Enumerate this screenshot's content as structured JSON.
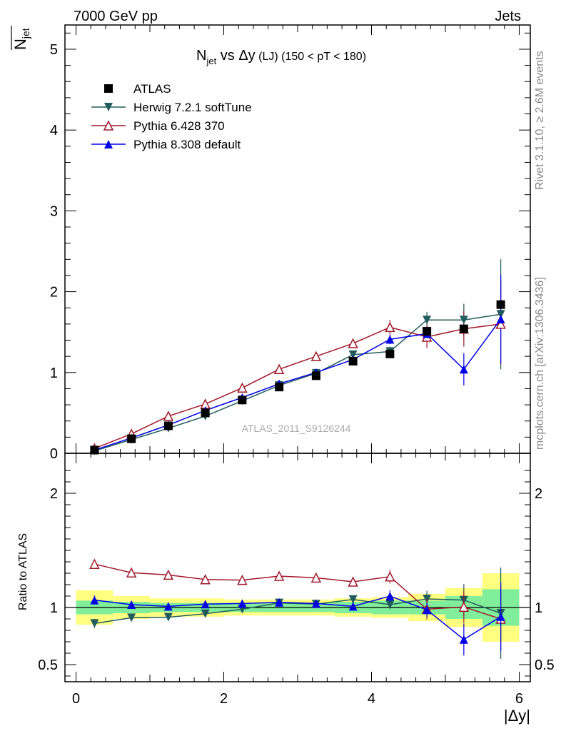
{
  "header": {
    "left": "7000 GeV pp",
    "right": "Jets"
  },
  "side_text": {
    "rivet": "Rivet 3.1.10, ≥ 2.6M events",
    "mcplots": "mcplots.cern.ch [arXiv:1306.3436]"
  },
  "main_title": {
    "n": "N",
    "jet_sub": "jet",
    "vs": " vs ",
    "dy": "Δy",
    "lj": " (LJ)",
    "range": " (150 < pT < 180)"
  },
  "y_axis_label": {
    "n": "N",
    "jet_sub": "jet"
  },
  "watermark": "ATLAS_2011_S9126244",
  "ratio_ylabel": "Ratio to ATLAS",
  "x_axis_label": "|Δy|",
  "chart_data": {
    "type": "line",
    "x": [
      0.25,
      0.75,
      1.25,
      1.75,
      2.25,
      2.75,
      3.25,
      3.75,
      4.25,
      4.75,
      5.25,
      5.75
    ],
    "xlim": [
      -0.15,
      6.15
    ],
    "ylim_main": [
      0,
      5.3
    ],
    "ylim_ratio": [
      0.35,
      2.35
    ],
    "x_ticks": [
      0,
      2,
      4,
      6
    ],
    "y_ticks_main": [
      0,
      1,
      2,
      3,
      4,
      5
    ],
    "y_ticks_ratio": [
      0.5,
      1,
      2
    ],
    "legend_position": "top-left",
    "series": [
      {
        "name": "ATLAS",
        "color": "#000000",
        "marker": "square",
        "values": [
          0.04,
          0.18,
          0.34,
          0.5,
          0.66,
          0.82,
          0.96,
          1.14,
          1.23,
          1.51,
          1.54,
          1.84
        ],
        "errors": [
          0.005,
          0.01,
          0.015,
          0.02,
          0.02,
          0.02,
          0.03,
          0.04,
          0.05,
          0.08,
          0.1,
          0.3
        ],
        "band_stat": [
          0.06,
          0.05,
          0.04,
          0.04,
          0.04,
          0.04,
          0.04,
          0.05,
          0.06,
          0.06,
          0.1,
          0.16
        ],
        "band_total": [
          0.15,
          0.1,
          0.08,
          0.08,
          0.07,
          0.07,
          0.07,
          0.08,
          0.09,
          0.12,
          0.17,
          0.3
        ]
      },
      {
        "name": "Herwig 7.2.1 softTune",
        "color": "#215c5c",
        "marker": "triangle-down",
        "values": [
          0.03,
          0.17,
          0.31,
          0.46,
          0.65,
          0.84,
          0.99,
          1.22,
          1.26,
          1.65,
          1.65,
          1.72
        ],
        "errors": [
          0.003,
          0.01,
          0.015,
          0.02,
          0.02,
          0.03,
          0.04,
          0.05,
          0.06,
          0.1,
          0.2,
          0.68
        ]
      },
      {
        "name": "Pythia 6.428 370",
        "color": "#a0182a",
        "marker": "triangle-open",
        "values": [
          0.06,
          0.24,
          0.46,
          0.61,
          0.81,
          1.04,
          1.2,
          1.36,
          1.56,
          1.44,
          1.54,
          1.6
        ],
        "errors": [
          0.005,
          0.01,
          0.02,
          0.02,
          0.03,
          0.03,
          0.04,
          0.05,
          0.09,
          0.14,
          0.22,
          0.5
        ]
      },
      {
        "name": "Pythia 8.308 default",
        "color": "#0000e6",
        "marker": "triangle-up",
        "values": [
          0.04,
          0.19,
          0.35,
          0.53,
          0.69,
          0.86,
          1.0,
          1.16,
          1.41,
          1.48,
          1.04,
          1.66
        ],
        "errors": [
          0.004,
          0.01,
          0.015,
          0.02,
          0.02,
          0.03,
          0.03,
          0.04,
          0.06,
          0.08,
          0.2,
          0.55
        ]
      }
    ],
    "ratio_series": [
      {
        "name": "Herwig 7.2.1 softTune",
        "values": [
          0.86,
          0.91,
          0.915,
          0.945,
          0.985,
          1.04,
          1.03,
          1.07,
          1.025,
          1.075,
          1.065,
          0.95
        ],
        "errors": [
          0.04,
          0.02,
          0.015,
          0.015,
          0.015,
          0.02,
          0.025,
          0.03,
          0.04,
          0.07,
          0.14,
          0.4
        ]
      },
      {
        "name": "Pythia 6.428 370",
        "values": [
          1.38,
          1.305,
          1.285,
          1.245,
          1.24,
          1.275,
          1.26,
          1.225,
          1.27,
          0.985,
          1.005,
          0.9
        ],
        "errors": [
          0.04,
          0.02,
          0.015,
          0.015,
          0.015,
          0.02,
          0.025,
          0.03,
          0.06,
          0.09,
          0.14,
          0.28
        ]
      },
      {
        "name": "Pythia 8.308 default",
        "values": [
          1.065,
          1.025,
          1.01,
          1.03,
          1.035,
          1.045,
          1.035,
          1.01,
          1.1,
          0.98,
          0.72,
          0.92
        ],
        "errors": [
          0.04,
          0.02,
          0.015,
          0.015,
          0.015,
          0.02,
          0.025,
          0.03,
          0.05,
          0.06,
          0.14,
          0.3
        ]
      }
    ]
  }
}
